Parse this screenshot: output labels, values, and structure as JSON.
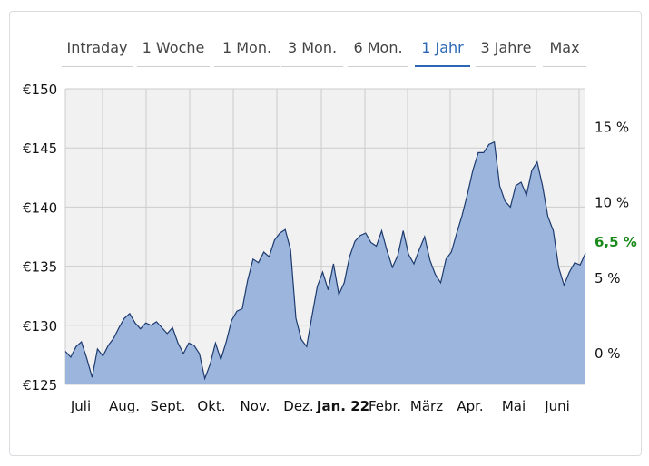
{
  "tabs": [
    {
      "label": "Intraday",
      "active": false
    },
    {
      "label": "1 Woche",
      "active": false
    },
    {
      "label": "1 Mon.",
      "active": false
    },
    {
      "label": "3 Mon.",
      "active": false
    },
    {
      "label": "6 Mon.",
      "active": false
    },
    {
      "label": "1 Jahr",
      "active": true
    },
    {
      "label": "3 Jahre",
      "active": false
    },
    {
      "label": "Max",
      "active": false
    }
  ],
  "colors": {
    "fill": "#9bb5dc",
    "line": "#1c3a6e",
    "plot_bg": "#f1f1f1",
    "grid": "#cccccc",
    "active_tab": "#2b67b4",
    "current_pct": "#1a8a1a"
  },
  "chart_data": {
    "type": "area",
    "y_ticks": [
      "€150",
      "€145",
      "€140",
      "€135",
      "€130",
      "€125"
    ],
    "y_values": [
      150,
      145,
      140,
      135,
      130,
      125
    ],
    "ylim": [
      125,
      150
    ],
    "right_ticks": [
      "15 %",
      "10 %",
      "5 %",
      "0 %"
    ],
    "right_values": [
      15,
      10,
      5,
      0
    ],
    "current_label": "6,5 %",
    "current_value": 6.5,
    "x_ticks": [
      {
        "label": "Juli",
        "bold": false
      },
      {
        "label": "Aug.",
        "bold": false
      },
      {
        "label": "Sept.",
        "bold": false
      },
      {
        "label": "Okt.",
        "bold": false
      },
      {
        "label": "Nov.",
        "bold": false
      },
      {
        "label": "Dez.",
        "bold": false
      },
      {
        "label": "Jan. 22",
        "bold": true
      },
      {
        "label": "Febr.",
        "bold": false
      },
      {
        "label": "März",
        "bold": false
      },
      {
        "label": "Apr.",
        "bold": false
      },
      {
        "label": "Mai",
        "bold": false
      },
      {
        "label": "Juni",
        "bold": false
      }
    ],
    "grid": true,
    "series": [
      {
        "values": [
          127.8,
          127.3,
          128.2,
          128.6,
          127.2,
          125.6,
          128.0,
          127.4,
          128.3,
          128.9,
          129.8,
          130.6,
          131.0,
          130.2,
          129.7,
          130.2,
          130.0,
          130.3,
          129.8,
          129.3,
          129.8,
          128.5,
          127.6,
          128.5,
          128.3,
          127.6,
          125.5,
          126.7,
          128.5,
          127.1,
          128.6,
          130.4,
          131.2,
          131.4,
          133.8,
          135.6,
          135.3,
          136.2,
          135.8,
          137.2,
          137.8,
          138.1,
          136.4,
          130.6,
          128.8,
          128.2,
          130.8,
          133.3,
          134.5,
          133.0,
          135.2,
          132.6,
          133.6,
          135.8,
          137.1,
          137.6,
          137.8,
          137.0,
          136.7,
          138.0,
          136.3,
          134.9,
          135.9,
          138.0,
          136.0,
          135.2,
          136.4,
          137.5,
          135.5,
          134.3,
          133.6,
          135.6,
          136.2,
          137.8,
          139.3,
          141.1,
          143.1,
          144.6,
          144.6,
          145.3,
          145.5,
          141.8,
          140.5,
          140.0,
          141.8,
          142.1,
          141.0,
          143.1,
          143.8,
          141.8,
          139.2,
          138.0,
          134.9,
          133.4,
          134.5,
          135.3,
          135.1,
          136.1
        ]
      }
    ]
  }
}
